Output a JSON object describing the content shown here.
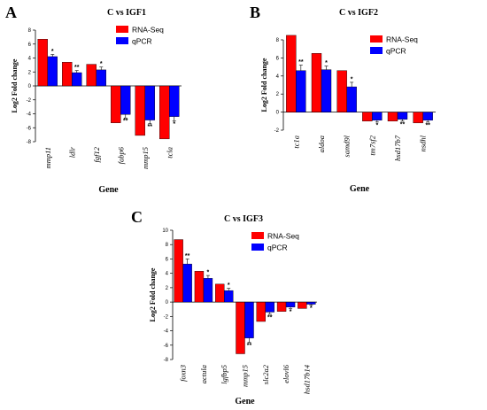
{
  "colors": {
    "rna": "#ff0000",
    "qpcr": "#0000ff",
    "axis": "#000000"
  },
  "chart_data": [
    {
      "type": "bar",
      "panel": "A",
      "title": "C vs IGF1",
      "xlabel": "Gene",
      "ylabel": "Log2 Fold change",
      "ylim": [
        -8,
        8
      ],
      "yticks": [
        8,
        6,
        4,
        2,
        0,
        -2,
        -4,
        -6,
        -8
      ],
      "legend": "top-right",
      "categories": [
        "mmp11",
        "ldlr",
        "fgf12",
        "fabp6",
        "mmp15",
        "tcla"
      ],
      "series": [
        {
          "name": "RNA-Seq",
          "values": [
            6.7,
            3.4,
            3.1,
            -5.3,
            -7.1,
            -7.6
          ]
        },
        {
          "name": "qPCR",
          "values": [
            4.2,
            1.9,
            2.3,
            -4.1,
            -4.9,
            -4.4
          ],
          "errors": [
            0.3,
            0.3,
            0.4,
            0.5,
            0.5,
            0.6
          ],
          "significance": [
            "*",
            "**",
            "*",
            "**",
            "**",
            "*"
          ]
        }
      ]
    },
    {
      "type": "bar",
      "panel": "B",
      "title": "C vs IGF2",
      "xlabel": "Gene",
      "ylabel": "Log2 Fold change",
      "ylim": [
        -2,
        8
      ],
      "yticks": [
        8,
        6,
        4,
        2,
        0,
        -2
      ],
      "legend": "top-right",
      "categories": [
        "tc1a",
        "aldoa",
        "samd9l",
        "tm7sf2",
        "hsd17b7",
        "nsdhl"
      ],
      "series": [
        {
          "name": "RNA-Seq",
          "values": [
            8.5,
            6.5,
            4.6,
            -1.0,
            -1.0,
            -1.2
          ]
        },
        {
          "name": "qPCR",
          "values": [
            4.6,
            4.7,
            2.8,
            -0.9,
            -0.8,
            -0.9
          ],
          "errors": [
            0.6,
            0.4,
            0.5,
            0.2,
            0.2,
            0.2
          ],
          "significance": [
            "**",
            "*",
            "*",
            "*",
            "**",
            "**"
          ]
        }
      ]
    },
    {
      "type": "bar",
      "panel": "C",
      "title": "C vs IGF3",
      "xlabel": "Gene",
      "ylabel": "Log2 Fold change",
      "ylim": [
        -8,
        10
      ],
      "yticks": [
        10,
        8,
        6,
        4,
        2,
        0,
        -2,
        -4,
        -6,
        -8
      ],
      "legend": "top-right",
      "categories": [
        "foxn3",
        "actula",
        "lgfbp5",
        "mmp15",
        "slc2a2",
        "elovl6",
        "hsd17b14"
      ],
      "series": [
        {
          "name": "RNA-Seq",
          "values": [
            8.7,
            4.3,
            2.5,
            -7.2,
            -2.7,
            -1.3,
            -0.9
          ]
        },
        {
          "name": "qPCR",
          "values": [
            5.3,
            3.3,
            1.6,
            -5.0,
            -1.4,
            -0.7,
            -0.3
          ],
          "errors": [
            0.7,
            0.4,
            0.3,
            0.6,
            0.3,
            0.2,
            0.1
          ],
          "significance": [
            "**",
            "*",
            "*",
            "**",
            "**",
            "*",
            "*"
          ]
        }
      ]
    }
  ]
}
